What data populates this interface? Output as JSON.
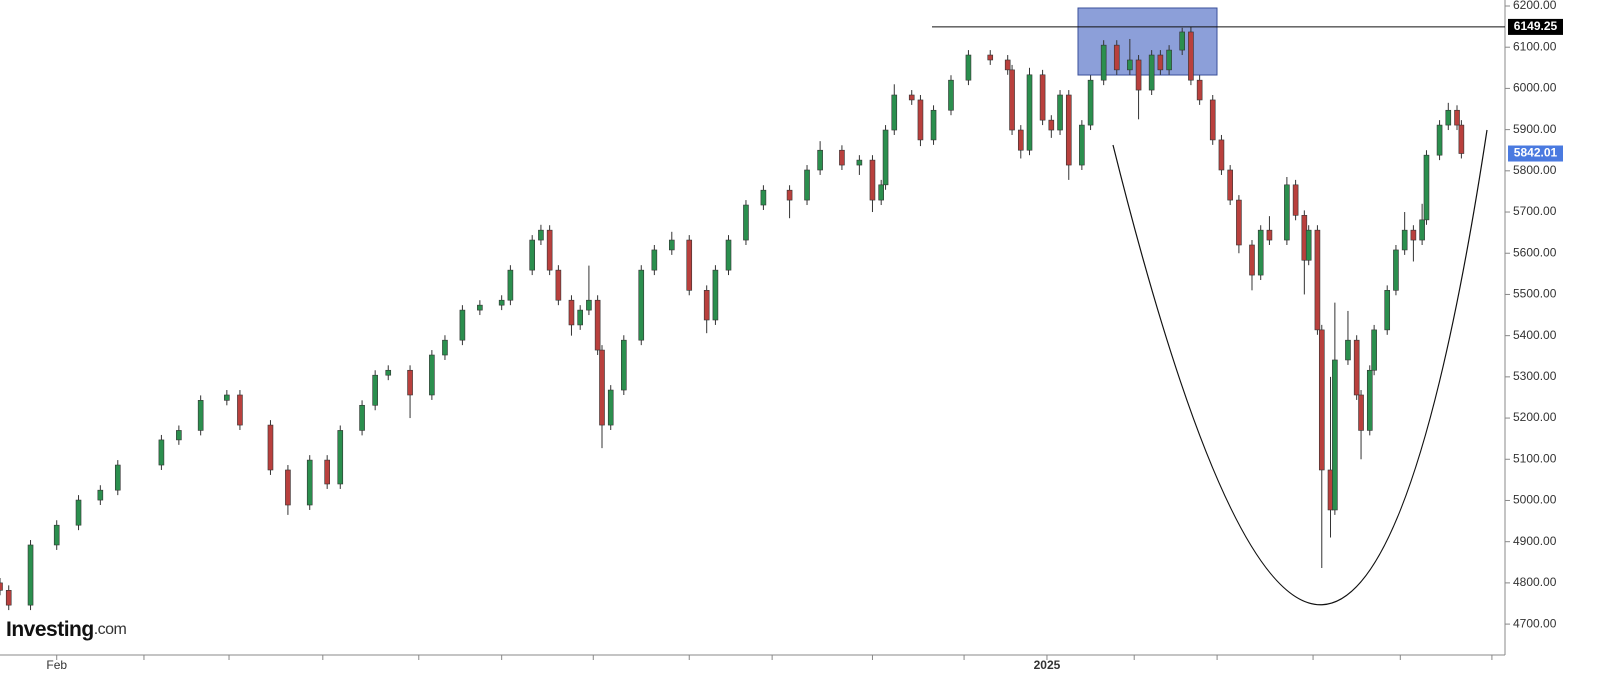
{
  "chart_data": {
    "type": "candlestick",
    "x": [
      0,
      2,
      7,
      13,
      18,
      23,
      27,
      37,
      41,
      46,
      52,
      55,
      62,
      66,
      71,
      75,
      78,
      83,
      86,
      89,
      94,
      99,
      102,
      106,
      110,
      115,
      117,
      122,
      124,
      126,
      128,
      131,
      133,
      135,
      137,
      138,
      140,
      143,
      147,
      150,
      154,
      158,
      162,
      164,
      167,
      171,
      175,
      181,
      185,
      188,
      193,
      197,
      200,
      202,
      203,
      205,
      209,
      211,
      214,
      218,
      222,
      227,
      231,
      232,
      234,
      236,
      239,
      241,
      243,
      245,
      248,
      250,
      253,
      256,
      259,
      261,
      264,
      266,
      268,
      271,
      273,
      275,
      278,
      280,
      282,
      284,
      287,
      289,
      291,
      295,
      297,
      299,
      300,
      302,
      303,
      305,
      306,
      309,
      311,
      312,
      314,
      315,
      318,
      320,
      322,
      324,
      326,
      327,
      330,
      332,
      334,
      335
    ],
    "open": [
      4800,
      4782,
      4746,
      4892,
      4940,
      5001,
      5025,
      5086,
      5147,
      5170,
      5243,
      5256,
      5183,
      5074,
      4989,
      5098,
      5040,
      5170,
      5231,
      5304,
      5316,
      5256,
      5353,
      5389,
      5462,
      5474,
      5486,
      5559,
      5632,
      5656,
      5559,
      5486,
      5426,
      5462,
      5486,
      5365,
      5183,
      5268,
      5389,
      5559,
      5608,
      5632,
      5510,
      5438,
      5559,
      5632,
      5717,
      5753,
      5729,
      5802,
      5850,
      5814,
      5826,
      5729,
      5766,
      5899,
      5984,
      5972,
      5875,
      5947,
      6020,
      6081,
      6069,
      6045,
      5899,
      5850,
      6033,
      5923,
      5899,
      5984,
      5814,
      5911,
      6020,
      6105,
      6045,
      6069,
      5996,
      6081,
      6045,
      6093,
      6137,
      6020,
      5972,
      5875,
      5802,
      5729,
      5620,
      5547,
      5656,
      5632,
      5766,
      5692,
      5583,
      5656,
      5414,
      5074,
      4977,
      5341,
      5389,
      5256,
      5170,
      5316,
      5414,
      5510,
      5608,
      5656,
      5632,
      5681,
      5838,
      5911,
      5947,
      5911
    ],
    "high": [
      4812,
      4794,
      4904,
      4952,
      5013,
      5037,
      5098,
      5159,
      5182,
      5255,
      5268,
      5268,
      5195,
      5086,
      5110,
      5110,
      5182,
      5243,
      5316,
      5328,
      5328,
      5365,
      5401,
      5474,
      5486,
      5498,
      5571,
      5644,
      5669,
      5668,
      5571,
      5498,
      5474,
      5570,
      5498,
      5377,
      5280,
      5401,
      5571,
      5620,
      5652,
      5644,
      5522,
      5571,
      5644,
      5729,
      5765,
      5765,
      5814,
      5872,
      5862,
      5838,
      5838,
      5778,
      5911,
      6010,
      5996,
      5984,
      5959,
      6032,
      6093,
      6093,
      6081,
      6057,
      5911,
      6050,
      6045,
      5935,
      5996,
      5996,
      5923,
      6032,
      6117,
      6117,
      6120,
      6081,
      6093,
      6093,
      6105,
      6147,
      6149,
      6032,
      5984,
      5887,
      5814,
      5741,
      5632,
      5668,
      5690,
      5785,
      5778,
      5704,
      5668,
      5668,
      5426,
      5300,
      5480,
      5460,
      5401,
      5268,
      5328,
      5426,
      5522,
      5620,
      5700,
      5668,
      5720,
      5850,
      5923,
      5965,
      5959,
      5923
    ],
    "low": [
      4770,
      4734,
      4734,
      4880,
      4928,
      4989,
      5013,
      5074,
      5135,
      5158,
      5231,
      5171,
      5062,
      4965,
      4977,
      5028,
      5028,
      5158,
      5219,
      5292,
      5200,
      5244,
      5341,
      5377,
      5450,
      5462,
      5474,
      5547,
      5620,
      5547,
      5474,
      5400,
      5414,
      5450,
      5353,
      5127,
      5171,
      5256,
      5377,
      5547,
      5596,
      5498,
      5406,
      5426,
      5547,
      5620,
      5705,
      5685,
      5717,
      5790,
      5802,
      5790,
      5700,
      5717,
      5754,
      5887,
      5960,
      5860,
      5863,
      5935,
      6008,
      6057,
      6033,
      5887,
      5830,
      5838,
      5911,
      5880,
      5887,
      5778,
      5802,
      5899,
      6008,
      6033,
      6033,
      5925,
      5984,
      6033,
      6033,
      6081,
      6008,
      5960,
      5863,
      5790,
      5717,
      5600,
      5510,
      5535,
      5620,
      5620,
      5680,
      5500,
      5571,
      5402,
      4836,
      4910,
      4965,
      5329,
      5244,
      5100,
      5158,
      5304,
      5402,
      5498,
      5596,
      5580,
      5620,
      5669,
      5826,
      5899,
      5899,
      5830
    ],
    "close": [
      4782,
      4746,
      4892,
      4940,
      5001,
      5025,
      5086,
      5147,
      5170,
      5243,
      5256,
      5183,
      5074,
      4989,
      5098,
      5040,
      5170,
      5231,
      5304,
      5316,
      5256,
      5353,
      5389,
      5462,
      5474,
      5486,
      5559,
      5632,
      5656,
      5559,
      5486,
      5426,
      5462,
      5486,
      5365,
      5183,
      5268,
      5389,
      5559,
      5608,
      5632,
      5510,
      5438,
      5559,
      5632,
      5717,
      5753,
      5729,
      5802,
      5850,
      5814,
      5826,
      5729,
      5766,
      5899,
      5984,
      5972,
      5875,
      5947,
      6020,
      6081,
      6069,
      6045,
      5899,
      5850,
      6033,
      5923,
      5899,
      5984,
      5814,
      5911,
      6020,
      6105,
      6045,
      6069,
      5996,
      6081,
      6045,
      6093,
      6137,
      6020,
      5972,
      5875,
      5802,
      5729,
      5620,
      5547,
      5656,
      5632,
      5766,
      5692,
      5583,
      5656,
      5414,
      5074,
      4977,
      5341,
      5389,
      5256,
      5170,
      5316,
      5414,
      5510,
      5608,
      5656,
      5632,
      5681,
      5838,
      5911,
      5947,
      5911,
      5842
    ],
    "up_color": "#2b8f4e",
    "down_color": "#b9403d",
    "xlim": [
      0,
      345
    ],
    "xticks": [
      {
        "value": 13,
        "label": "Feb"
      },
      {
        "value": 33,
        "label": null
      },
      {
        "value": 52.5,
        "label": null
      },
      {
        "value": 74,
        "label": null
      },
      {
        "value": 96,
        "label": null
      },
      {
        "value": 115,
        "label": null
      },
      {
        "value": 136,
        "label": null
      },
      {
        "value": 158,
        "label": null
      },
      {
        "value": 177,
        "label": null
      },
      {
        "value": 200,
        "label": null
      },
      {
        "value": 221,
        "label": null
      },
      {
        "value": 240,
        "label": "2025"
      },
      {
        "value": 260,
        "label": null
      },
      {
        "value": 279,
        "label": null
      },
      {
        "value": 301,
        "label": null
      },
      {
        "value": 321,
        "label": null
      },
      {
        "value": 342,
        "label": null
      }
    ],
    "ylim": [
      4625,
      6200
    ],
    "yticks": [
      {
        "value": 4700,
        "label": "4700.00"
      },
      {
        "value": 4800,
        "label": "4800.00"
      },
      {
        "value": 4900,
        "label": "4900.00"
      },
      {
        "value": 5000,
        "label": "5000.00"
      },
      {
        "value": 5100,
        "label": "5100.00"
      },
      {
        "value": 5200,
        "label": "5200.00"
      },
      {
        "value": 5300,
        "label": "5300.00"
      },
      {
        "value": 5400,
        "label": "5400.00"
      },
      {
        "value": 5500,
        "label": "5500.00"
      },
      {
        "value": 5600,
        "label": "5600.00"
      },
      {
        "value": 5700,
        "label": "5700.00"
      },
      {
        "value": 5800,
        "label": "5800.00"
      },
      {
        "value": 5900,
        "label": "5900.00"
      },
      {
        "value": 6000,
        "label": "6000.00"
      },
      {
        "value": 6100,
        "label": "6100.00"
      },
      {
        "value": 6200,
        "label": "6200.00"
      }
    ],
    "price_markers": [
      {
        "value": 6149.25,
        "color": "#000000",
        "line": true
      },
      {
        "value": 5842.01,
        "color": "#4a7ae0",
        "line": false
      }
    ],
    "watermark": [
      "Investing",
      ".com"
    ]
  }
}
